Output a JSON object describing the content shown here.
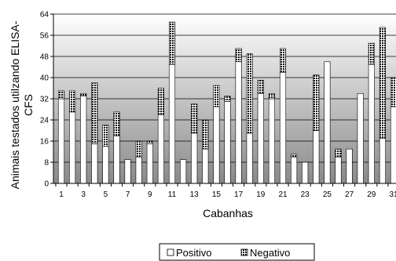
{
  "chart_data": {
    "type": "bar",
    "stacked": true,
    "xlabel": "Cabanhas",
    "ylabel": "Animais testados utilzando ELISA-CFS",
    "ylim": [
      0,
      64
    ],
    "yticks": [
      0,
      8,
      16,
      24,
      32,
      40,
      48,
      56,
      64
    ],
    "xtick_labels": [
      "1",
      "3",
      "5",
      "7",
      "9",
      "11",
      "13",
      "15",
      "17",
      "19",
      "21",
      "23",
      "25",
      "27",
      "29",
      "31"
    ],
    "grid": true,
    "legend_position": "bottom",
    "categories": [
      "1",
      "2",
      "3",
      "4",
      "5",
      "6",
      "7",
      "8",
      "9",
      "10",
      "11",
      "12",
      "13",
      "14",
      "15",
      "16",
      "17",
      "18",
      "19",
      "20",
      "21",
      "22",
      "23",
      "24",
      "25",
      "26",
      "27",
      "28",
      "29",
      "30",
      "31",
      "32"
    ],
    "series": [
      {
        "name": "Positivo",
        "color": "#ffffff",
        "values": [
          32,
          27,
          33,
          15,
          14,
          18,
          9,
          10,
          15,
          26,
          45,
          9,
          19,
          13,
          29,
          31,
          46,
          19,
          34,
          32,
          42,
          10,
          8,
          20,
          46,
          10,
          13,
          34,
          45,
          17,
          29,
          0
        ]
      },
      {
        "name": "Negativo",
        "color": "#222222",
        "values": [
          3,
          8,
          1,
          23,
          8,
          9,
          0,
          6,
          1,
          10,
          16,
          0,
          11,
          11,
          8,
          2,
          5,
          30,
          5,
          2,
          9,
          1,
          0,
          21,
          0,
          3,
          0,
          0,
          8,
          42,
          11,
          0
        ]
      }
    ]
  }
}
